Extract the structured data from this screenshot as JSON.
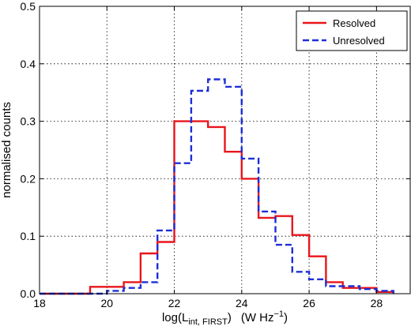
{
  "chart_data": {
    "type": "histogram",
    "xlabel_main": "log(L",
    "xlabel_sub": "int, FIRST",
    "xlabel_close": ")",
    "xlabel_units_pre": "(W Hz",
    "xlabel_units_sup": "−1",
    "xlabel_units_post": ")",
    "ylabel": "normalised counts",
    "xlim": [
      18,
      29
    ],
    "ylim": [
      0,
      0.5
    ],
    "xticks": [
      18,
      20,
      22,
      24,
      26,
      28
    ],
    "yticks": [
      0.0,
      0.1,
      0.2,
      0.3,
      0.4,
      0.5
    ],
    "ytick_labels": [
      "0.0",
      "0.1",
      "0.2",
      "0.3",
      "0.4",
      "0.5"
    ],
    "grid": true,
    "legend_position": "top-right",
    "bin_edges": [
      18.0,
      18.5,
      19.0,
      19.5,
      20.0,
      20.5,
      21.0,
      21.5,
      22.0,
      22.5,
      23.0,
      23.5,
      24.0,
      24.5,
      25.0,
      25.5,
      26.0,
      26.5,
      27.0,
      27.5,
      28.0,
      28.5
    ],
    "series": [
      {
        "name": "Resolved",
        "color": "#e8161b",
        "style": "solid",
        "values": [
          0,
          0,
          0,
          0.012,
          0.012,
          0.02,
          0.07,
          0.09,
          0.3,
          0.3,
          0.29,
          0.247,
          0.2,
          0.132,
          0.135,
          0.102,
          0.065,
          0.02,
          0.01,
          0.01,
          0.003
        ]
      },
      {
        "name": "Unresolved",
        "color": "#1c2fd6",
        "style": "dashed",
        "values": [
          0,
          0,
          0,
          0,
          0.005,
          0.01,
          0.02,
          0.11,
          0.227,
          0.353,
          0.373,
          0.36,
          0.235,
          0.143,
          0.085,
          0.038,
          0.025,
          0.013,
          0.013,
          0.008,
          0.005
        ]
      }
    ]
  }
}
